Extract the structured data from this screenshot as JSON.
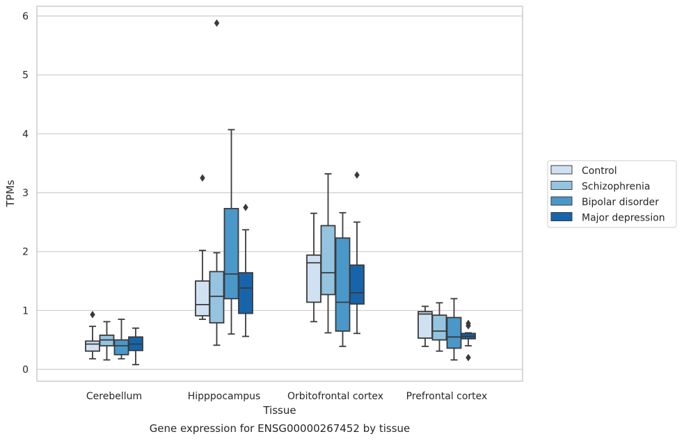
{
  "chart_data": {
    "type": "box",
    "title": "Gene expression for ENSG00000267452 by tissue",
    "xlabel": "Tissue",
    "ylabel": "TPMs",
    "ylim": [
      -0.2,
      6.17
    ],
    "yticks": [
      0,
      1,
      2,
      3,
      4,
      5,
      6
    ],
    "grid": true,
    "legend_position": "right",
    "categories": [
      "Cerebellum",
      "Hipppocampus",
      "Orbitofrontal cortex",
      "Prefrontal cortex"
    ],
    "series": [
      {
        "name": "Control",
        "color": "#d0e1f2",
        "boxes": [
          {
            "whislo": 0.18,
            "q1": 0.31,
            "med": 0.43,
            "q3": 0.48,
            "whishi": 0.73,
            "fliers": [
              0.93
            ]
          },
          {
            "whislo": 0.85,
            "q1": 0.91,
            "med": 1.1,
            "q3": 1.5,
            "whishi": 2.02,
            "fliers": [
              3.25
            ]
          },
          {
            "whislo": 0.81,
            "q1": 1.14,
            "med": 1.81,
            "q3": 1.94,
            "whishi": 2.65,
            "fliers": []
          },
          {
            "whislo": 0.39,
            "q1": 0.53,
            "med": 0.94,
            "q3": 0.98,
            "whishi": 1.07,
            "fliers": []
          }
        ]
      },
      {
        "name": "Schizophrenia",
        "color": "#94c4df",
        "boxes": [
          {
            "whislo": 0.16,
            "q1": 0.4,
            "med": 0.5,
            "q3": 0.58,
            "whishi": 0.81,
            "fliers": []
          },
          {
            "whislo": 0.41,
            "q1": 0.79,
            "med": 1.24,
            "q3": 1.66,
            "whishi": 1.98,
            "fliers": [
              5.88
            ]
          },
          {
            "whislo": 0.62,
            "q1": 1.27,
            "med": 1.64,
            "q3": 2.44,
            "whishi": 3.32,
            "fliers": []
          },
          {
            "whislo": 0.31,
            "q1": 0.5,
            "med": 0.65,
            "q3": 0.92,
            "whishi": 1.13,
            "fliers": []
          }
        ]
      },
      {
        "name": "Bipolar disorder",
        "color": "#4a98c9",
        "boxes": [
          {
            "whislo": 0.18,
            "q1": 0.25,
            "med": 0.4,
            "q3": 0.5,
            "whishi": 0.85,
            "fliers": []
          },
          {
            "whislo": 0.6,
            "q1": 1.2,
            "med": 1.62,
            "q3": 2.73,
            "whishi": 4.07,
            "fliers": []
          },
          {
            "whislo": 0.39,
            "q1": 0.65,
            "med": 1.14,
            "q3": 2.23,
            "whishi": 2.66,
            "fliers": []
          },
          {
            "whislo": 0.16,
            "q1": 0.36,
            "med": 0.55,
            "q3": 0.88,
            "whishi": 1.2,
            "fliers": []
          }
        ]
      },
      {
        "name": "Major depression",
        "color": "#1764ab",
        "boxes": [
          {
            "whislo": 0.08,
            "q1": 0.32,
            "med": 0.43,
            "q3": 0.55,
            "whishi": 0.7,
            "fliers": []
          },
          {
            "whislo": 0.56,
            "q1": 0.95,
            "med": 1.38,
            "q3": 1.64,
            "whishi": 2.37,
            "fliers": [
              2.75
            ]
          },
          {
            "whislo": 0.61,
            "q1": 1.11,
            "med": 1.3,
            "q3": 1.77,
            "whishi": 2.5,
            "fliers": [
              3.3
            ]
          },
          {
            "whislo": 0.4,
            "q1": 0.52,
            "med": 0.56,
            "q3": 0.61,
            "whishi": 0.62,
            "fliers": [
              0.74,
              0.78,
              0.2
            ]
          }
        ]
      }
    ]
  },
  "colors": {
    "grid": "#cccccc",
    "frame": "#cccccc",
    "box_edge": "#3a3a3a"
  }
}
